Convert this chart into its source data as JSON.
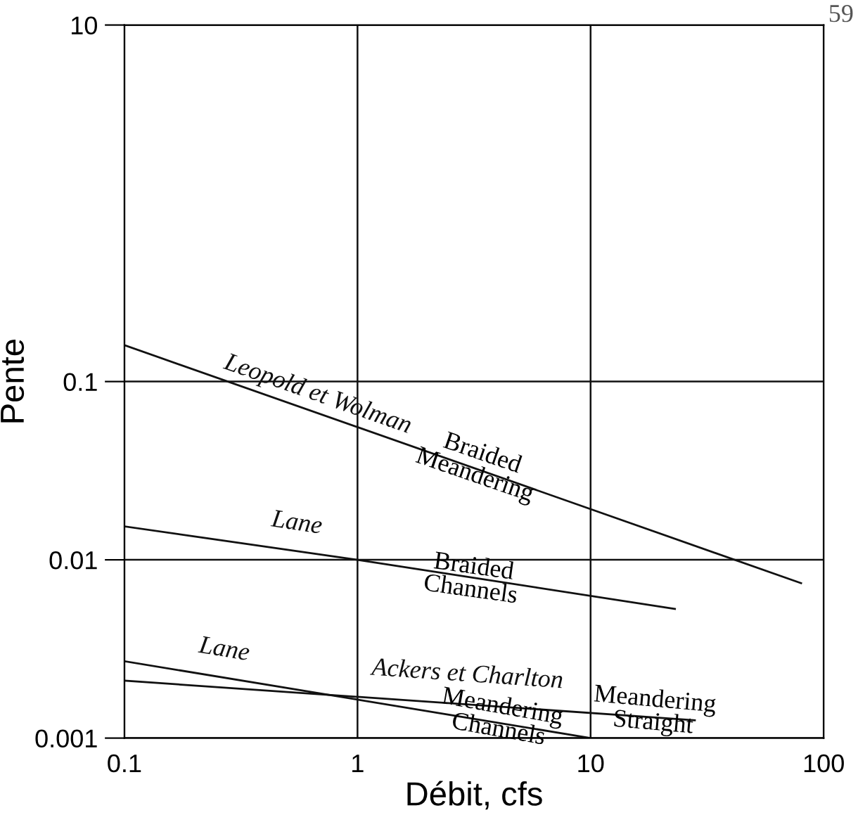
{
  "chart_data": {
    "type": "line",
    "xlabel": "Débit, cfs",
    "ylabel": "Pente",
    "log": "xy",
    "grid": true,
    "legend": false,
    "xlim": [
      0.1,
      100
    ],
    "xticks": [
      0.1,
      1,
      10,
      100
    ],
    "ylim": [
      0.001,
      10
    ],
    "yticks": [
      0.001,
      0.01,
      0.1,
      10
    ],
    "series": [
      {
        "name": "Leopold et Wolman",
        "color": "#111111",
        "x": [
          0.1,
          80
        ],
        "values": [
          0.16,
          0.0074
        ]
      },
      {
        "name": "Lane",
        "color": "#111111",
        "x": [
          0.1,
          1,
          23
        ],
        "values": [
          0.0154,
          0.01,
          0.0053
        ]
      },
      {
        "name": "Lane",
        "color": "#111111",
        "x": [
          0.1,
          10
        ],
        "values": [
          0.0027,
          0.001
        ]
      },
      {
        "name": "Ackers et Charlton",
        "color": "#111111",
        "x": [
          0.1,
          28
        ],
        "values": [
          0.0021,
          0.00126
        ]
      }
    ],
    "annotations": [
      {
        "text": "Braided\nMeandering",
        "x": 3.3,
        "y": 0.034
      },
      {
        "text": "Braided\nChannels",
        "x": 3.1,
        "y": 0.0078
      },
      {
        "text": "Meandering\nChannels",
        "x": 4.1,
        "y": 0.00128
      },
      {
        "text": "Meandering\nStraight",
        "x": 18.7,
        "y": 0.0014
      },
      "59"
    ]
  }
}
